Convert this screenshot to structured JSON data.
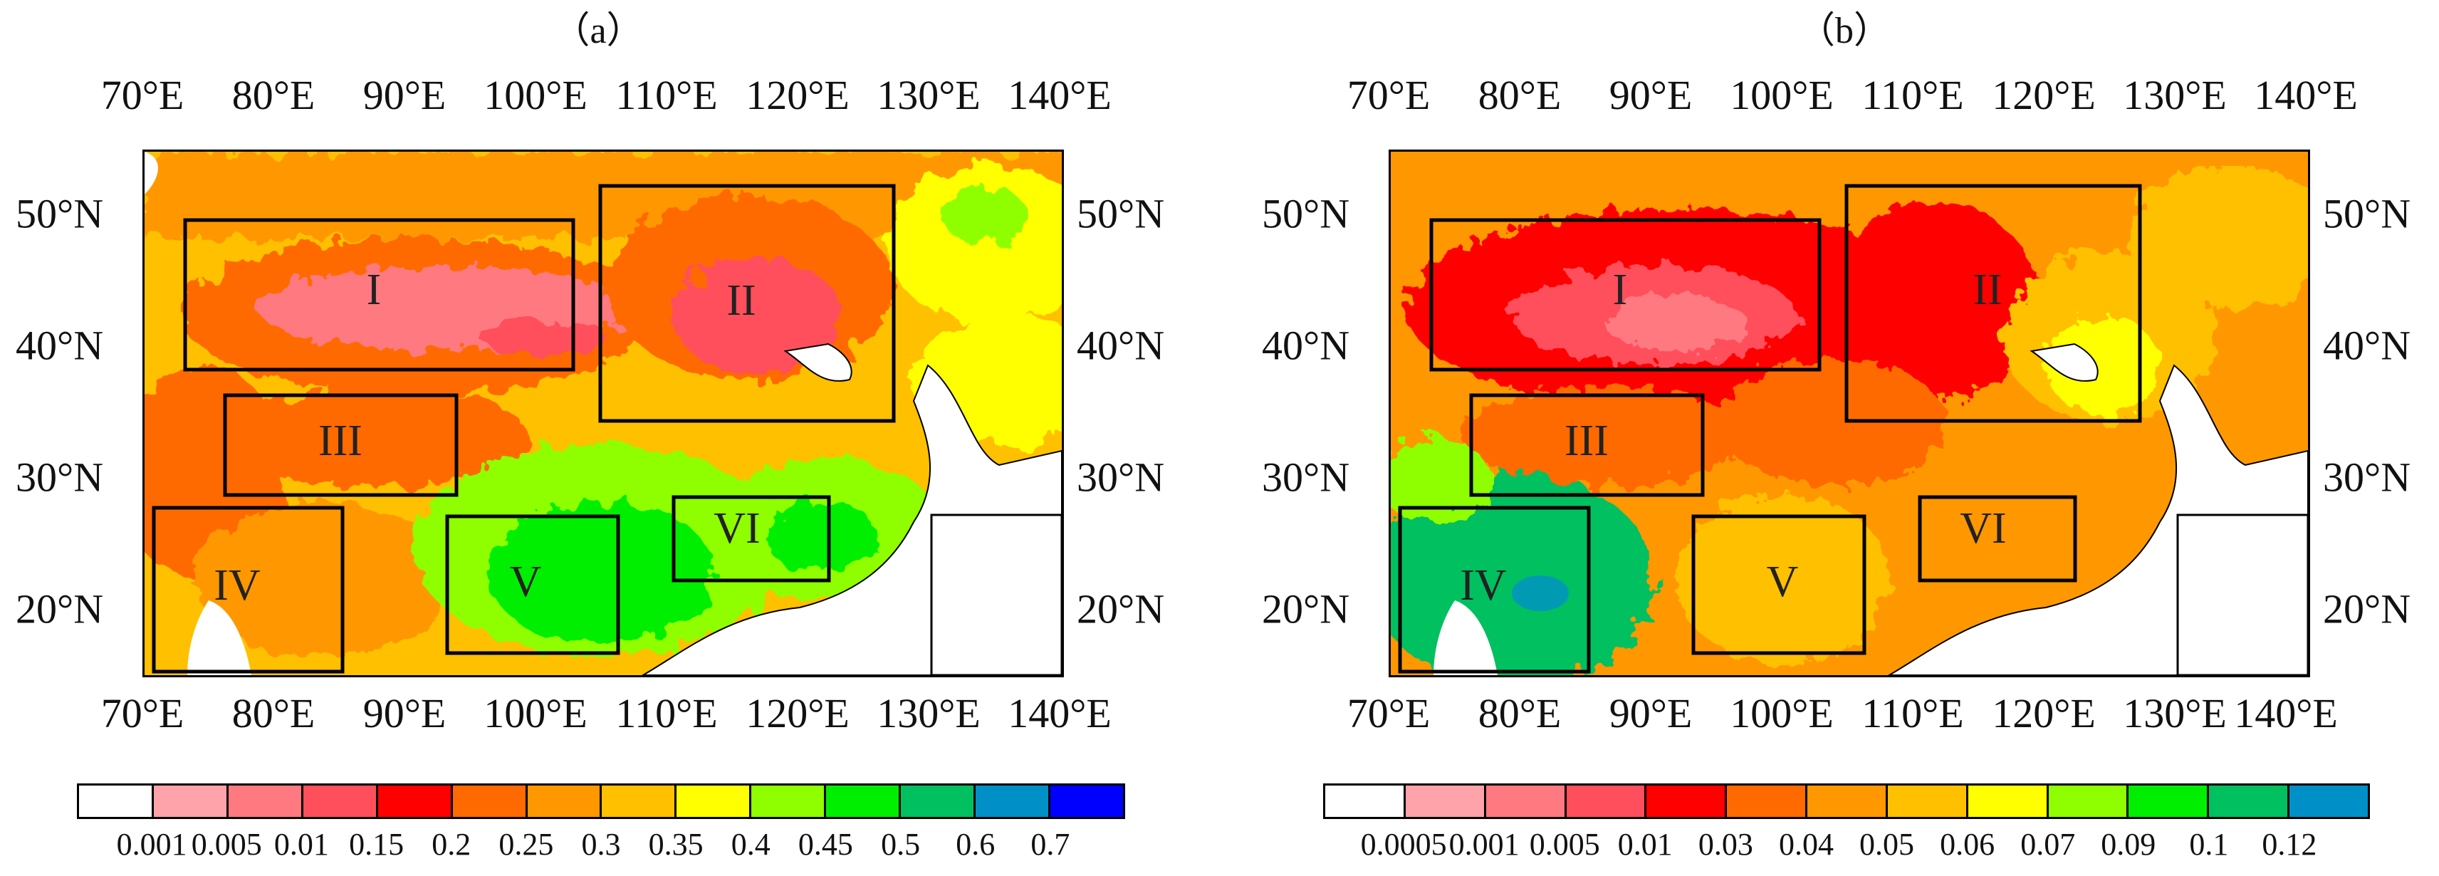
{
  "panels": [
    {
      "id": "a",
      "title": "（a）",
      "lon_labels": [
        "70°E",
        "80°E",
        "90°E",
        "100°E",
        "110°E",
        "120°E",
        "130°E",
        "140°E"
      ],
      "lat_labels": [
        "50°N",
        "40°N",
        "30°N",
        "20°N"
      ],
      "regions": [
        "I",
        "II",
        "III",
        "IV",
        "V",
        "VI"
      ],
      "colorbar": {
        "colors": [
          "#ffffff",
          "#ffa3aa",
          "#ff7a80",
          "#ff4f5c",
          "#ff0000",
          "#ff6a00",
          "#ff9800",
          "#ffc000",
          "#ffff00",
          "#8fff00",
          "#00ee00",
          "#00c060",
          "#0090c8",
          "#0000ff"
        ],
        "labels": [
          "0.001",
          "0.005",
          "0.01",
          "0.15",
          "0.2",
          "0.25",
          "0.3",
          "0.35",
          "0.4",
          "0.45",
          "0.5",
          "0.6",
          "0.7"
        ]
      }
    },
    {
      "id": "b",
      "title": "（b）",
      "lon_labels": [
        "70°E",
        "80°E",
        "90°E",
        "100°E",
        "110°E",
        "120°E",
        "130°E",
        "140°E"
      ],
      "lat_labels": [
        "50°N",
        "40°N",
        "30°N",
        "20°N"
      ],
      "regions": [
        "I",
        "II",
        "III",
        "IV",
        "V",
        "VI"
      ],
      "colorbar": {
        "colors": [
          "#ffffff",
          "#ffa3aa",
          "#ff7a80",
          "#ff4f5c",
          "#ff0000",
          "#ff6a00",
          "#ff9800",
          "#ffc000",
          "#ffff00",
          "#8fff00",
          "#00ee00",
          "#00c060",
          "#0090c8"
        ],
        "labels": [
          "0.0005",
          "0.001",
          "0.005",
          "0.01",
          "0.03",
          "0.04",
          "0.05",
          "0.06",
          "0.07",
          "0.09",
          "0.1",
          "0.12"
        ]
      }
    }
  ]
}
